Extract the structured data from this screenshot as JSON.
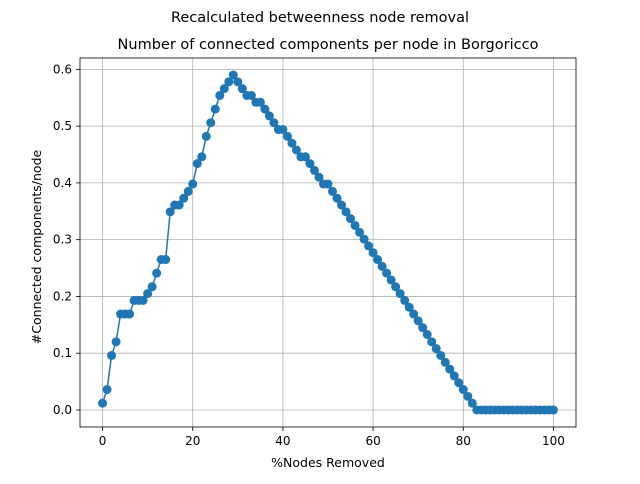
{
  "figure": {
    "suptitle": "Recalculated betweenness node removal"
  },
  "chart_data": {
    "type": "line",
    "title": "Number of connected components per node in Borgoricco",
    "xlabel": "%Nodes Removed",
    "ylabel": "#Connected components/node",
    "xlim": [
      -5,
      105
    ],
    "ylim": [
      -0.03,
      0.62
    ],
    "xticks": [
      0,
      20,
      40,
      60,
      80,
      100
    ],
    "yticks": [
      0.0,
      0.1,
      0.2,
      0.3,
      0.4,
      0.5,
      0.6
    ],
    "xtick_labels": [
      "0",
      "20",
      "40",
      "60",
      "80",
      "100"
    ],
    "ytick_labels": [
      "0.0",
      "0.1",
      "0.2",
      "0.3",
      "0.4",
      "0.5",
      "0.6"
    ],
    "grid": true,
    "marker": "circle",
    "color": "#1f77b4",
    "series": [
      {
        "x": [
          0,
          1,
          2,
          3,
          4,
          5,
          6,
          7,
          8,
          9,
          10,
          11,
          12,
          13,
          14,
          15,
          16,
          17,
          18,
          19,
          20,
          21,
          22,
          23,
          24,
          25,
          26,
          27,
          28,
          29,
          30,
          31,
          32,
          33,
          34,
          35,
          36,
          37,
          38,
          39,
          40,
          41,
          42,
          43,
          44,
          45,
          46,
          47,
          48,
          49,
          50,
          51,
          52,
          53,
          54,
          55,
          56,
          57,
          58,
          59,
          60,
          61,
          62,
          63,
          64,
          65,
          66,
          67,
          68,
          69,
          70,
          71,
          72,
          73,
          74,
          75,
          76,
          77,
          78,
          79,
          80,
          81,
          82,
          83,
          84,
          85,
          86,
          87,
          88,
          89,
          90,
          91,
          92,
          93,
          94,
          95,
          96,
          97,
          98,
          99,
          100
        ],
        "y": [
          0.012,
          0.036,
          0.096,
          0.12,
          0.169,
          0.169,
          0.169,
          0.193,
          0.193,
          0.193,
          0.205,
          0.217,
          0.241,
          0.265,
          0.265,
          0.349,
          0.361,
          0.361,
          0.373,
          0.385,
          0.398,
          0.434,
          0.446,
          0.482,
          0.506,
          0.53,
          0.554,
          0.566,
          0.578,
          0.59,
          0.578,
          0.566,
          0.554,
          0.554,
          0.542,
          0.542,
          0.53,
          0.518,
          0.506,
          0.494,
          0.494,
          0.482,
          0.47,
          0.458,
          0.446,
          0.446,
          0.434,
          0.422,
          0.41,
          0.398,
          0.398,
          0.385,
          0.373,
          0.361,
          0.349,
          0.337,
          0.325,
          0.313,
          0.301,
          0.289,
          0.277,
          0.265,
          0.253,
          0.241,
          0.229,
          0.217,
          0.205,
          0.193,
          0.181,
          0.169,
          0.157,
          0.145,
          0.133,
          0.12,
          0.108,
          0.096,
          0.084,
          0.072,
          0.06,
          0.048,
          0.036,
          0.024,
          0.012,
          0.0,
          0.0,
          0.0,
          0.0,
          0.0,
          0.0,
          0.0,
          0.0,
          0.0,
          0.0,
          0.0,
          0.0,
          0.0,
          0.0,
          0.0,
          0.0,
          0.0,
          0.0
        ]
      }
    ]
  }
}
